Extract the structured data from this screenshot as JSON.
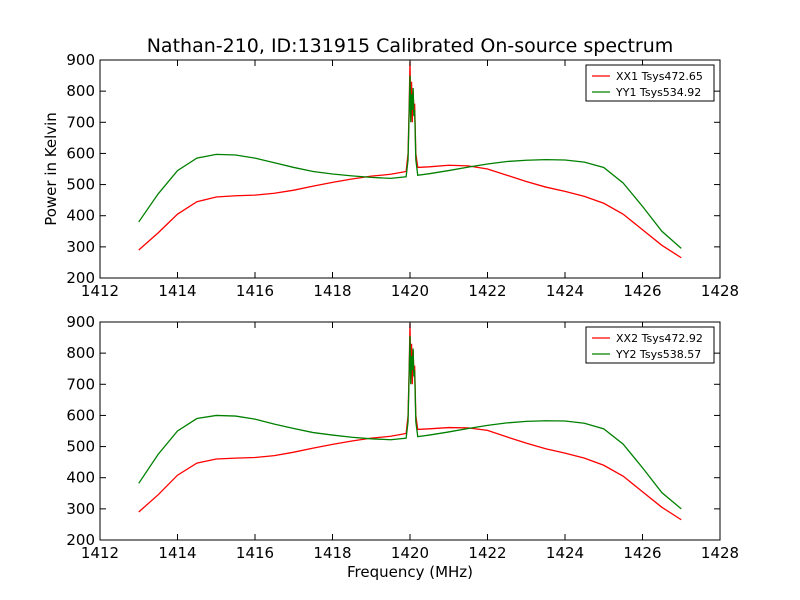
{
  "chart_data": {
    "type": "line",
    "title": "Nathan-210, ID:131915 Calibrated On-source spectrum",
    "xlabel": "Frequency (MHz)",
    "ylabel": "Power in Kelvin",
    "panels": [
      {
        "xlim": [
          1412,
          1428
        ],
        "ylim": [
          200,
          900
        ],
        "xticks": [
          "1412",
          "1414",
          "1416",
          "1418",
          "1420",
          "1422",
          "1424",
          "1426",
          "1428"
        ],
        "yticks": [
          "200",
          "300",
          "400",
          "500",
          "600",
          "700",
          "800",
          "900"
        ],
        "legend_position": "top-right",
        "series": [
          {
            "name": "XX1 Tsys472.65",
            "color": "#ff0000",
            "x": [
              1413.0,
              1413.5,
              1414.0,
              1414.5,
              1415.0,
              1415.5,
              1416.0,
              1416.5,
              1417.0,
              1417.5,
              1418.0,
              1418.5,
              1419.0,
              1419.5,
              1419.9,
              1419.95,
              1419.98,
              1420.0,
              1420.02,
              1420.04,
              1420.06,
              1420.08,
              1420.1,
              1420.12,
              1420.15,
              1420.2,
              1420.5,
              1421.0,
              1421.5,
              1422.0,
              1422.5,
              1423.0,
              1423.5,
              1424.0,
              1424.5,
              1425.0,
              1425.5,
              1426.0,
              1426.5,
              1427.0
            ],
            "y": [
              290,
              345,
              405,
              445,
              460,
              464,
              466,
              472,
              482,
              495,
              507,
              518,
              527,
              533,
              542,
              600,
              760,
              895,
              720,
              830,
              700,
              800,
              740,
              760,
              600,
              555,
              557,
              562,
              560,
              550,
              530,
              510,
              492,
              478,
              462,
              440,
              405,
              355,
              305,
              265
            ]
          },
          {
            "name": "YY1 Tsys534.92",
            "color": "#008000",
            "x": [
              1413.0,
              1413.5,
              1414.0,
              1414.5,
              1415.0,
              1415.5,
              1416.0,
              1416.5,
              1417.0,
              1417.5,
              1418.0,
              1418.5,
              1419.0,
              1419.5,
              1419.9,
              1419.95,
              1419.98,
              1420.0,
              1420.02,
              1420.04,
              1420.06,
              1420.08,
              1420.1,
              1420.12,
              1420.15,
              1420.2,
              1420.5,
              1421.0,
              1421.5,
              1422.0,
              1422.5,
              1423.0,
              1423.5,
              1424.0,
              1424.5,
              1425.0,
              1425.5,
              1426.0,
              1426.5,
              1427.0
            ],
            "y": [
              380,
              470,
              545,
              585,
              597,
              595,
              585,
              570,
              555,
              542,
              534,
              528,
              523,
              520,
              525,
              580,
              740,
              850,
              700,
              790,
              740,
              810,
              720,
              740,
              580,
              530,
              535,
              545,
              556,
              566,
              574,
              578,
              580,
              579,
              572,
              555,
              505,
              430,
              350,
              295
            ]
          }
        ]
      },
      {
        "xlim": [
          1412,
          1428
        ],
        "ylim": [
          200,
          900
        ],
        "xticks": [
          "1412",
          "1414",
          "1416",
          "1418",
          "1420",
          "1422",
          "1424",
          "1426",
          "1428"
        ],
        "yticks": [
          "200",
          "300",
          "400",
          "500",
          "600",
          "700",
          "800",
          "900"
        ],
        "legend_position": "top-right",
        "series": [
          {
            "name": "XX2 Tsys472.92",
            "color": "#ff0000",
            "x": [
              1413.0,
              1413.5,
              1414.0,
              1414.5,
              1415.0,
              1415.5,
              1416.0,
              1416.5,
              1417.0,
              1417.5,
              1418.0,
              1418.5,
              1419.0,
              1419.5,
              1419.9,
              1419.95,
              1419.98,
              1420.0,
              1420.02,
              1420.04,
              1420.06,
              1420.08,
              1420.1,
              1420.12,
              1420.15,
              1420.2,
              1420.5,
              1421.0,
              1421.5,
              1422.0,
              1422.5,
              1423.0,
              1423.5,
              1424.0,
              1424.5,
              1425.0,
              1425.5,
              1426.0,
              1426.5,
              1427.0
            ],
            "y": [
              290,
              345,
              408,
              447,
              460,
              463,
              465,
              471,
              482,
              495,
              507,
              518,
              527,
              533,
              542,
              600,
              760,
              895,
              720,
              830,
              700,
              810,
              740,
              760,
              600,
              555,
              557,
              561,
              560,
              552,
              531,
              511,
              493,
              479,
              463,
              440,
              405,
              355,
              305,
              265
            ]
          },
          {
            "name": "YY2 Tsys538.57",
            "color": "#008000",
            "x": [
              1413.0,
              1413.5,
              1414.0,
              1414.5,
              1415.0,
              1415.5,
              1416.0,
              1416.5,
              1417.0,
              1417.5,
              1418.0,
              1418.5,
              1419.0,
              1419.5,
              1419.9,
              1419.95,
              1419.98,
              1420.0,
              1420.02,
              1420.04,
              1420.06,
              1420.08,
              1420.1,
              1420.12,
              1420.15,
              1420.2,
              1420.5,
              1421.0,
              1421.5,
              1422.0,
              1422.5,
              1423.0,
              1423.5,
              1424.0,
              1424.5,
              1425.0,
              1425.5,
              1426.0,
              1426.5,
              1427.0
            ],
            "y": [
              382,
              475,
              550,
              590,
              600,
              598,
              588,
              572,
              558,
              545,
              537,
              530,
              525,
              522,
              527,
              580,
              740,
              855,
              700,
              790,
              745,
              815,
              725,
              745,
              580,
              532,
              537,
              547,
              558,
              568,
              576,
              581,
              583,
              582,
              575,
              557,
              508,
              432,
              352,
              300
            ]
          }
        ]
      }
    ]
  }
}
